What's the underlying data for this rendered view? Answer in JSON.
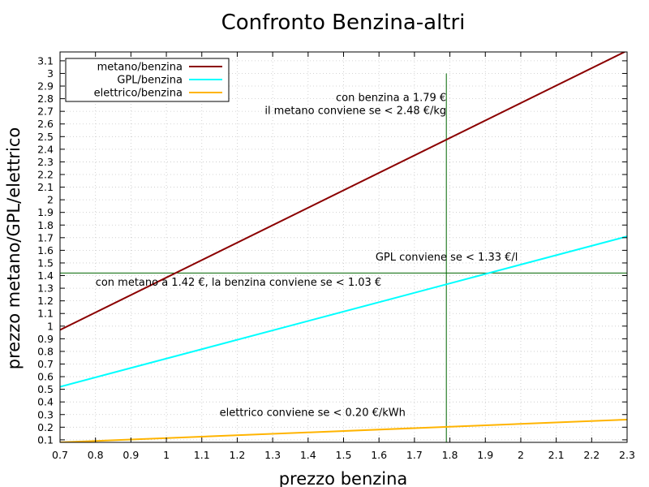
{
  "chart_data": {
    "type": "line",
    "title": "Confronto Benzina-altri",
    "xlabel": "prezzo benzina",
    "ylabel": "prezzo metano/GPL/elettrico",
    "xlim": [
      0.7,
      2.3
    ],
    "ylim": [
      0.08,
      3.17
    ],
    "xticks": [
      "0.7",
      "0.8",
      "0.9",
      "1",
      "1.1",
      "1.2",
      "1.3",
      "1.4",
      "1.5",
      "1.6",
      "1.7",
      "1.8",
      "1.9",
      "2",
      "2.1",
      "2.2",
      "2.3"
    ],
    "yticks": [
      "0.1",
      "0.2",
      "0.3",
      "0.4",
      "0.5",
      "0.6",
      "0.7",
      "0.8",
      "0.9",
      "1",
      "1.1",
      "1.2",
      "1.3",
      "1.4",
      "1.5",
      "1.6",
      "1.7",
      "1.8",
      "1.9",
      "2",
      "2.1",
      "2.2",
      "2.3",
      "2.4",
      "2.5",
      "2.6",
      "2.7",
      "2.8",
      "2.9",
      "3",
      "3.1"
    ],
    "grid": true,
    "legend_position": "top-left",
    "series": [
      {
        "name": "metano/benzina",
        "color": "#8b0000",
        "x": [
          0.7,
          2.3
        ],
        "y": [
          0.97,
          3.18
        ]
      },
      {
        "name": "GPL/benzina",
        "color": "#00ffff",
        "x": [
          0.7,
          2.3
        ],
        "y": [
          0.52,
          1.71
        ]
      },
      {
        "name": "elettrico/benzina",
        "color": "#ffb400",
        "x": [
          0.7,
          2.3
        ],
        "y": [
          0.08,
          0.26
        ]
      }
    ],
    "reference_lines": [
      {
        "orientation": "vertical",
        "x": 1.79,
        "y_range": [
          0.08,
          3.0
        ],
        "color": "#006400"
      },
      {
        "orientation": "horizontal",
        "y": 1.42,
        "color": "#006400"
      }
    ],
    "annotations": [
      {
        "text": "con benzina a 1.79 €",
        "x": 1.79,
        "y": 2.78,
        "anchor": "end"
      },
      {
        "text": "il metano conviene se < 2.48 €/kg",
        "x": 1.79,
        "y": 2.68,
        "anchor": "end"
      },
      {
        "text": "GPL conviene se < 1.33 €/l",
        "x": 1.59,
        "y": 1.52,
        "anchor": "start"
      },
      {
        "text": "con metano a 1.42 €, la benzina conviene se < 1.03 €",
        "x": 0.8,
        "y": 1.32,
        "anchor": "start"
      },
      {
        "text": "elettrico conviene se < 0.20 €/kWh",
        "x": 1.15,
        "y": 0.29,
        "anchor": "start"
      }
    ]
  }
}
